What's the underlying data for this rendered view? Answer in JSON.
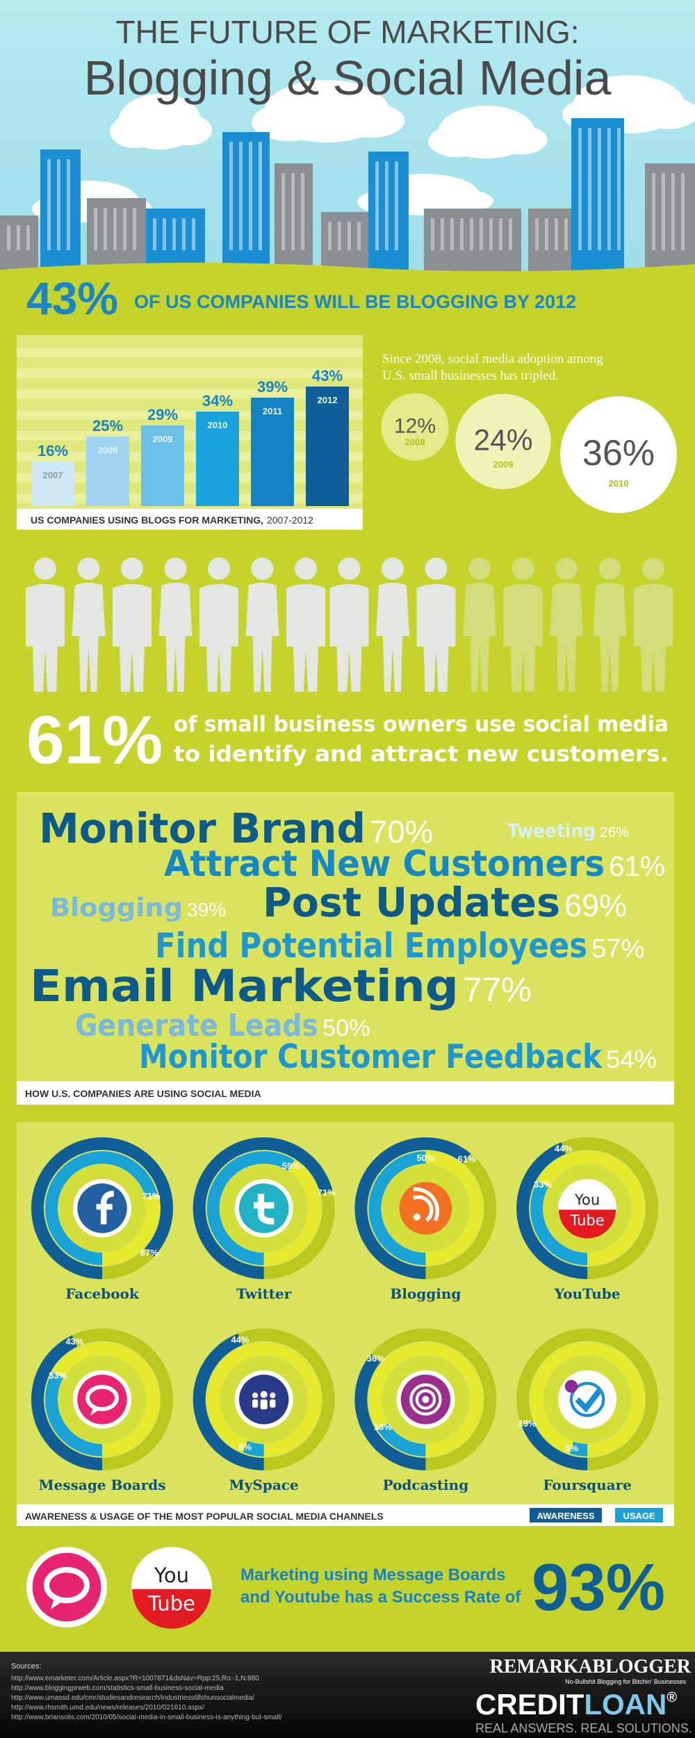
{
  "header": {
    "title": "THE FUTURE OF MARKETING:",
    "subtitle": "Blogging & Social Media"
  },
  "headline": {
    "value_label": "43%",
    "text": "OF US COMPANIES WILL BE BLOGGING BY 2012"
  },
  "logos": {
    "you": "You",
    "tube": "Tube"
  },
  "chart_data": [
    {
      "type": "bar",
      "title": "US COMPANIES USING BLOGS FOR MARKETING,",
      "subtitle": "2007-2012",
      "categories": [
        "2007",
        "2008",
        "2009",
        "2010",
        "2011",
        "2012"
      ],
      "values": [
        16,
        25,
        29,
        34,
        39,
        43
      ],
      "value_labels": [
        "16%",
        "25%",
        "29%",
        "34%",
        "39%",
        "43%"
      ],
      "colors": [
        "#cfe8f5",
        "#9fd3ef",
        "#6cbfe6",
        "#1aa3dc",
        "#1383c4",
        "#0f5f99"
      ]
    },
    {
      "type": "bubble",
      "text": [
        "Since 2008, social media adoption among",
        "U.S. small businesses has tripled."
      ],
      "categories": [
        "2008",
        "2009",
        "2010"
      ],
      "values": [
        12,
        24,
        36
      ],
      "value_labels": [
        "12%",
        "24%",
        "36%"
      ],
      "colors": [
        "#e3ea8a",
        "#f0f3b8",
        "#ffffff"
      ]
    },
    {
      "type": "pictogram",
      "value": 61,
      "value_label": "61%",
      "text": [
        "of small business owners use social media",
        "to identify and attract new customers."
      ]
    },
    {
      "type": "word-cloud",
      "title": "HOW U.S. COMPANIES ARE USING SOCIAL MEDIA",
      "categories": [
        "Monitor Brand",
        "Tweeting",
        "Attract New Customers",
        "Blogging",
        "Post Updates",
        "Find Potential Employees",
        "Email Marketing",
        "Generate Leads",
        "Monitor Customer Feedback"
      ],
      "values": [
        70,
        26,
        61,
        39,
        69,
        57,
        77,
        50,
        54
      ],
      "value_labels": [
        "70%",
        "26%",
        "61%",
        "39%",
        "69%",
        "57%",
        "77%",
        "50%",
        "54%"
      ]
    },
    {
      "type": "donut",
      "title": "AWARENESS & USAGE OF THE MOST POPULAR SOCIAL MEDIA CHANNELS",
      "categories": [
        "Facebook",
        "Twitter",
        "Blogging",
        "YouTube",
        "Message Boards",
        "MySpace",
        "Podcasting",
        "Foursquare"
      ],
      "series": [
        {
          "name": "AWARENESS",
          "color": "#0f5f96",
          "values": [
            87,
            71,
            61,
            44,
            43,
            44,
            36,
            19
          ],
          "value_labels": [
            "87%",
            "71%",
            "61%",
            "44%",
            "43%",
            "44%",
            "36%",
            "19%"
          ]
        },
        {
          "name": "USAGE",
          "color": "#1aa3d6",
          "values": [
            71,
            59,
            50,
            33,
            33,
            6,
            16,
            5
          ],
          "value_labels": [
            "71%",
            "59%",
            "50%",
            "33%",
            "33%",
            "6%",
            "16%",
            "5%"
          ]
        }
      ]
    }
  ],
  "conclusion": {
    "text": [
      "Marketing using Message Boards",
      "and Youtube has a Success Rate of"
    ],
    "value_label": "93%"
  },
  "sources": {
    "label": "Sources:",
    "items": [
      "http://www.emarketer.com/Article.aspx?R=1007871&dsNav=Rpp:25,Ro:-1,N:880",
      "http://www.bloggingprweb.com/statistics-small-business-social-media",
      "http://www.umassd.edu/cmr/studiesandresearch/industriesstillshunsocialmedia/",
      "http://www.rhsmith.umd.edu/news/releases/2010/021610.aspx/",
      "http://www.briansolis.com/2010/05/social-media-in-small-business-is-anything-but-small/"
    ]
  },
  "brands": {
    "remarkablogger": "REMARKABLOGGER",
    "tagline": "No-Bullshit Blogging for Bitchin' Businesses",
    "credit": "CREDIT",
    "loan": "LOAN",
    "reg": "®",
    "slogan": "REAL ANSWERS. REAL SOLUTIONS."
  }
}
